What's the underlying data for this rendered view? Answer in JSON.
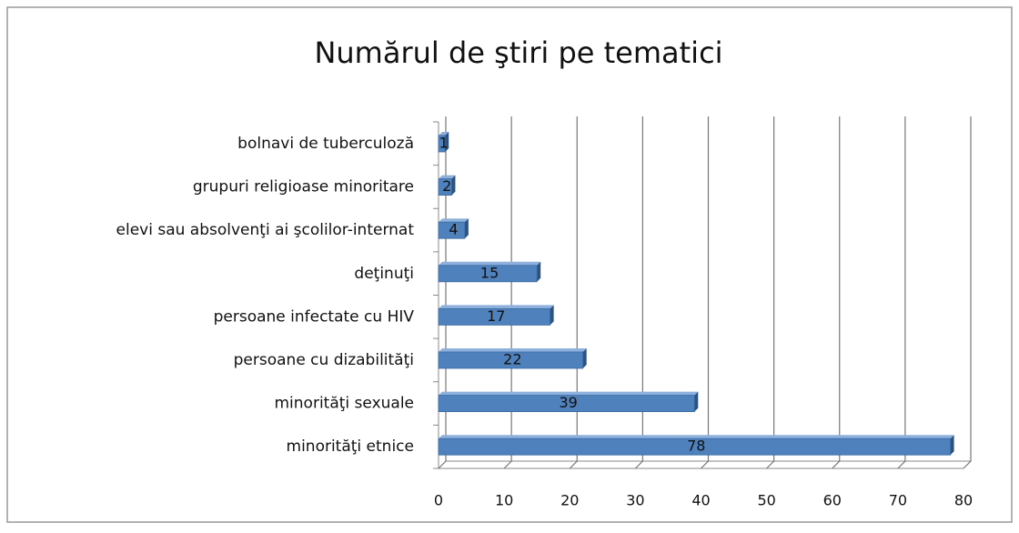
{
  "chart_data": {
    "type": "bar",
    "orientation": "horizontal",
    "title": "Numărul de ştiri pe tematici",
    "categories": [
      "bolnavi de tuberculoză",
      "grupuri religioase minoritare",
      "elevi sau absolvenţi ai şcolilor-internat",
      "deţinuţi",
      "persoane infectate cu HIV",
      "persoane cu dizabilităţi",
      "minorităţi sexuale",
      "minorităţi etnice"
    ],
    "values": [
      1,
      2,
      4,
      15,
      17,
      22,
      39,
      78
    ],
    "color": "#4f81bd",
    "xlim": [
      0,
      80
    ],
    "xticks": [
      0,
      10,
      20,
      30,
      40,
      50,
      60,
      70,
      80
    ],
    "grid": true
  }
}
